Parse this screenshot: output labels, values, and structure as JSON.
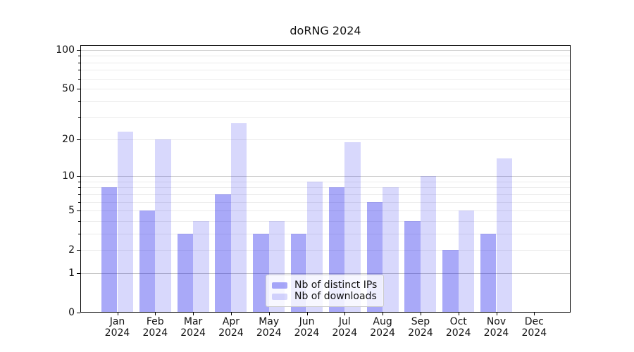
{
  "title": "doRNG 2024",
  "chart_data": {
    "type": "bar",
    "title": "doRNG 2024",
    "categories": [
      "Jan 2024",
      "Feb 2024",
      "Mar 2024",
      "Apr 2024",
      "May 2024",
      "Jun 2024",
      "Jul 2024",
      "Aug 2024",
      "Sep 2024",
      "Oct 2024",
      "Nov 2024",
      "Dec 2024"
    ],
    "series": [
      {
        "name": "Nb of distinct IPs",
        "key": "distinct-ips",
        "color": "rgba(10,10,235,0.35)",
        "values": [
          8,
          5,
          3,
          7,
          3,
          3,
          8,
          6,
          4,
          2,
          3,
          0
        ]
      },
      {
        "name": "Nb of downloads",
        "key": "downloads",
        "color": "rgba(10,10,235,0.16)",
        "values": [
          23,
          20,
          4,
          27,
          4,
          9,
          19,
          8,
          10,
          5,
          14,
          0
        ]
      }
    ],
    "y_axis": {
      "scale": "log1p",
      "tick_labels": [
        "0",
        "1",
        "2",
        "5",
        "10",
        "20",
        "50",
        "100"
      ],
      "tick_values": [
        0,
        1,
        2,
        5,
        10,
        20,
        50,
        100
      ],
      "major_gridlines": [
        1,
        10,
        100
      ],
      "minor_gridlines": [
        2,
        3,
        4,
        5,
        6,
        7,
        8,
        9,
        20,
        30,
        40,
        50,
        60,
        70,
        80,
        90
      ],
      "range": [
        0,
        109
      ]
    },
    "x_axis": {
      "year_line": "2024"
    },
    "legend": {
      "position": "bottom-center",
      "items": [
        "Nb of distinct IPs",
        "Nb of downloads"
      ]
    },
    "grid": true,
    "colors": {
      "bar_distinct_ips": "rgba(10,10,235,0.35)",
      "bar_downloads": "rgba(10,10,235,0.16)",
      "major_grid": "#c9c9c9",
      "minor_grid": "#ebebeb",
      "axis": "#000000",
      "text": "#111111",
      "background": "#ffffff"
    }
  }
}
